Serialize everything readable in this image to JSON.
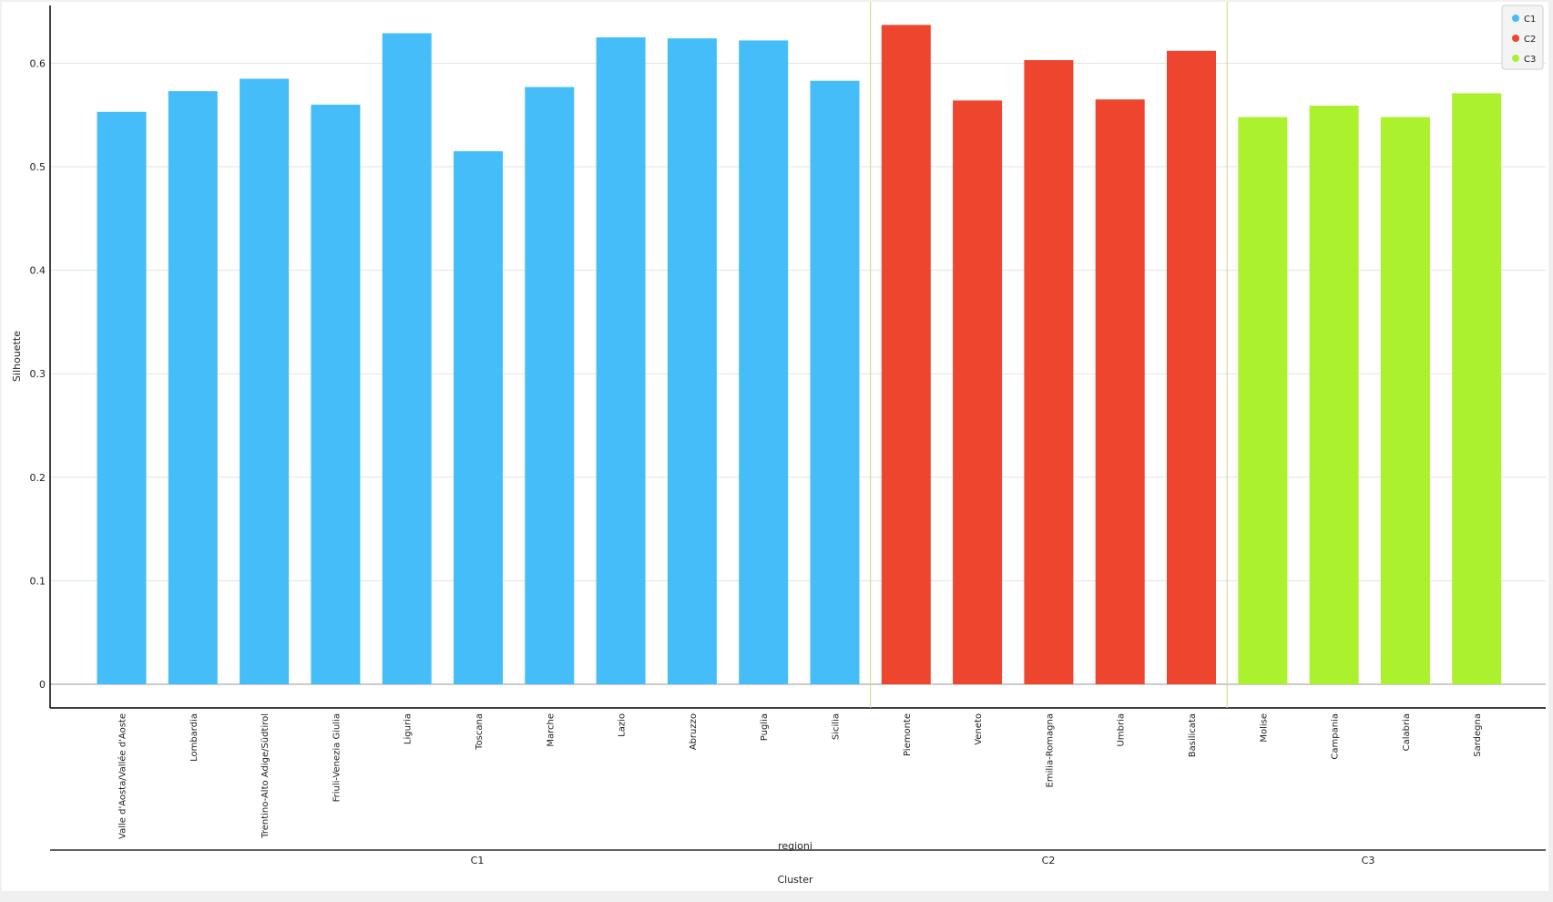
{
  "chart_data": {
    "type": "bar",
    "title": "",
    "ylabel": "Silhouette",
    "xlabel": "regioni",
    "group_label": "Cluster",
    "ylim": [
      0,
      0.65
    ],
    "yticks": [
      0,
      0.1,
      0.2,
      0.3,
      0.4,
      0.5,
      0.6
    ],
    "ytick_labels": [
      "0",
      "0.1",
      "0.2",
      "0.3",
      "0.4",
      "0.5",
      "0.6"
    ],
    "grid": true,
    "legend_position": "top-right",
    "categories": [
      "Valle d'Aosta/Vallée d'Aoste",
      "Lombardia",
      "Trentino-Alto Adige/Südtirol",
      "Friuli-Venezia Giulia",
      "Liguria",
      "Toscana",
      "Marche",
      "Lazio",
      "Abruzzo",
      "Puglia",
      "Sicilia",
      "Piemonte",
      "Veneto",
      "Emilia-Romagna",
      "Umbria",
      "Basilicata",
      "Molise",
      "Campania",
      "Calabria",
      "Sardegna"
    ],
    "values": [
      0.553,
      0.573,
      0.585,
      0.56,
      0.629,
      0.515,
      0.577,
      0.625,
      0.624,
      0.622,
      0.583,
      0.637,
      0.564,
      0.603,
      0.565,
      0.612,
      0.548,
      0.559,
      0.548,
      0.571
    ],
    "groups": [
      {
        "name": "C1",
        "count": 11,
        "color": "#45bdf9"
      },
      {
        "name": "C2",
        "count": 5,
        "color": "#ee452f"
      },
      {
        "name": "C3",
        "count": 4,
        "color": "#acf12e"
      }
    ],
    "legend": [
      {
        "label": "C1",
        "color": "#45bdf9"
      },
      {
        "label": "C2",
        "color": "#ee452f"
      },
      {
        "label": "C3",
        "color": "#acf12e"
      }
    ]
  }
}
